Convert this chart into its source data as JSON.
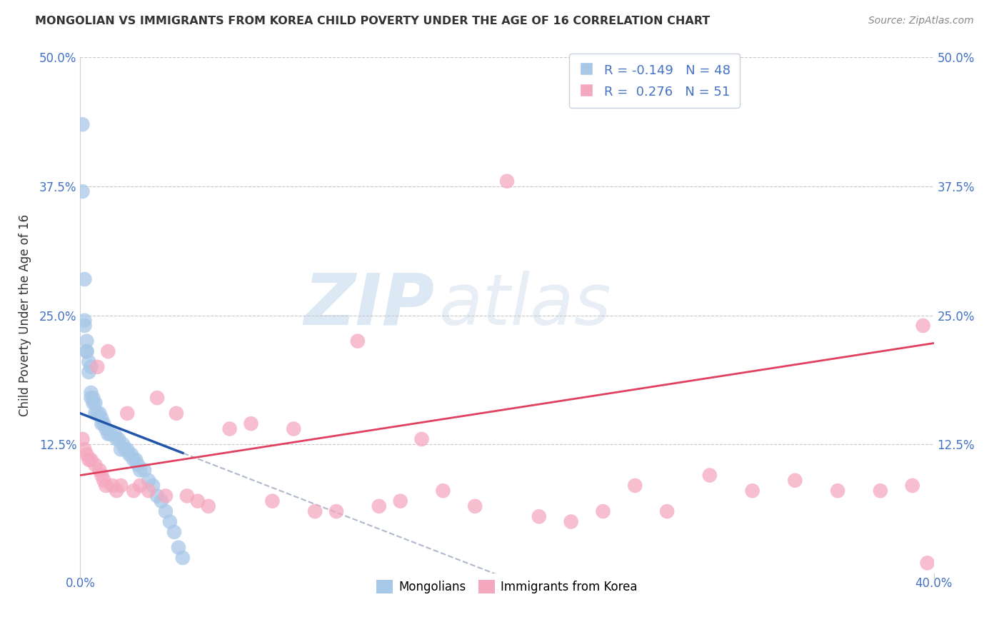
{
  "title": "MONGOLIAN VS IMMIGRANTS FROM KOREA CHILD POVERTY UNDER THE AGE OF 16 CORRELATION CHART",
  "source": "Source: ZipAtlas.com",
  "ylabel": "Child Poverty Under the Age of 16",
  "xlim": [
    0.0,
    0.4
  ],
  "ylim": [
    0.0,
    0.5
  ],
  "xticks": [
    0.0,
    0.4
  ],
  "xticklabels": [
    "0.0%",
    "40.0%"
  ],
  "yticks": [
    0.0,
    0.125,
    0.25,
    0.375,
    0.5
  ],
  "yticklabels": [
    "",
    "12.5%",
    "25.0%",
    "37.5%",
    "50.0%"
  ],
  "blue_color": "#a8c8e8",
  "pink_color": "#f4a8c0",
  "blue_line_color": "#2255aa",
  "pink_line_color": "#e04060",
  "dash_line_color": "#b0b8cc",
  "watermark_zip": "ZIP",
  "watermark_atlas": "atlas",
  "mongolian_x": [
    0.001,
    0.001,
    0.002,
    0.002,
    0.002,
    0.003,
    0.003,
    0.003,
    0.004,
    0.004,
    0.005,
    0.005,
    0.005,
    0.006,
    0.006,
    0.007,
    0.007,
    0.008,
    0.009,
    0.01,
    0.01,
    0.011,
    0.012,
    0.013,
    0.014,
    0.016,
    0.017,
    0.018,
    0.019,
    0.02,
    0.021,
    0.022,
    0.023,
    0.024,
    0.025,
    0.026,
    0.027,
    0.028,
    0.03,
    0.032,
    0.034,
    0.036,
    0.038,
    0.04,
    0.042,
    0.044,
    0.046,
    0.048
  ],
  "mongolian_y": [
    0.435,
    0.37,
    0.285,
    0.245,
    0.24,
    0.225,
    0.215,
    0.215,
    0.205,
    0.195,
    0.2,
    0.175,
    0.17,
    0.17,
    0.165,
    0.165,
    0.155,
    0.155,
    0.155,
    0.15,
    0.145,
    0.145,
    0.14,
    0.135,
    0.135,
    0.135,
    0.13,
    0.13,
    0.12,
    0.125,
    0.12,
    0.12,
    0.115,
    0.115,
    0.11,
    0.11,
    0.105,
    0.1,
    0.1,
    0.09,
    0.085,
    0.075,
    0.07,
    0.06,
    0.05,
    0.04,
    0.025,
    0.015
  ],
  "korea_x": [
    0.001,
    0.002,
    0.003,
    0.004,
    0.005,
    0.007,
    0.008,
    0.009,
    0.01,
    0.011,
    0.012,
    0.013,
    0.015,
    0.017,
    0.019,
    0.022,
    0.025,
    0.028,
    0.032,
    0.036,
    0.04,
    0.045,
    0.05,
    0.055,
    0.06,
    0.07,
    0.08,
    0.09,
    0.1,
    0.11,
    0.12,
    0.13,
    0.14,
    0.15,
    0.16,
    0.17,
    0.185,
    0.2,
    0.215,
    0.23,
    0.245,
    0.26,
    0.275,
    0.295,
    0.315,
    0.335,
    0.355,
    0.375,
    0.39,
    0.395,
    0.397
  ],
  "korea_y": [
    0.13,
    0.12,
    0.115,
    0.11,
    0.11,
    0.105,
    0.2,
    0.1,
    0.095,
    0.09,
    0.085,
    0.215,
    0.085,
    0.08,
    0.085,
    0.155,
    0.08,
    0.085,
    0.08,
    0.17,
    0.075,
    0.155,
    0.075,
    0.07,
    0.065,
    0.14,
    0.145,
    0.07,
    0.14,
    0.06,
    0.06,
    0.225,
    0.065,
    0.07,
    0.13,
    0.08,
    0.065,
    0.38,
    0.055,
    0.05,
    0.06,
    0.085,
    0.06,
    0.095,
    0.08,
    0.09,
    0.08,
    0.08,
    0.085,
    0.24,
    0.01
  ],
  "blue_line_x_end": 0.048,
  "pink_line_intercept": 0.095,
  "pink_line_slope": 0.32,
  "blue_line_intercept": 0.155,
  "blue_line_slope": -0.8
}
